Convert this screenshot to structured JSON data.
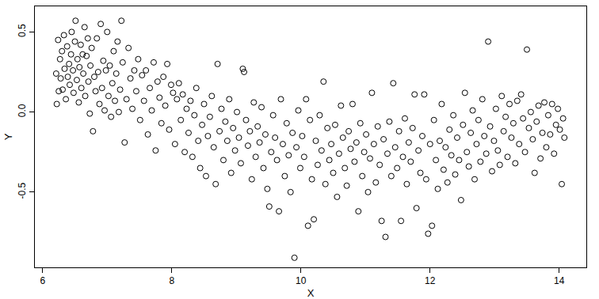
{
  "chart_data": {
    "type": "scatter",
    "x_label": "X",
    "y_label": "Y",
    "x": [
      6.21,
      6.22,
      6.24,
      6.25,
      6.27,
      6.28,
      6.3,
      6.31,
      6.33,
      6.34,
      6.36,
      6.38,
      6.39,
      6.41,
      6.42,
      6.44,
      6.45,
      6.47,
      6.48,
      6.5,
      6.51,
      6.53,
      6.54,
      6.56,
      6.57,
      6.59,
      6.6,
      6.62,
      6.63,
      6.65,
      6.66,
      6.68,
      6.7,
      6.71,
      6.73,
      6.74,
      6.76,
      6.78,
      6.8,
      6.82,
      6.84,
      6.86,
      6.88,
      6.9,
      6.92,
      6.94,
      6.96,
      6.98,
      7.0,
      7.02,
      7.04,
      7.06,
      7.08,
      7.1,
      7.12,
      7.14,
      7.16,
      7.18,
      7.2,
      7.22,
      7.24,
      7.27,
      7.3,
      7.33,
      7.36,
      7.39,
      7.42,
      7.45,
      7.48,
      7.51,
      7.54,
      7.57,
      7.6,
      7.63,
      7.66,
      7.69,
      7.72,
      7.75,
      7.78,
      7.81,
      7.84,
      7.87,
      7.9,
      7.93,
      7.96,
      7.99,
      8.02,
      8.05,
      8.08,
      8.11,
      8.14,
      8.17,
      8.2,
      8.23,
      8.26,
      8.29,
      8.32,
      8.35,
      8.38,
      8.41,
      8.44,
      8.47,
      8.5,
      8.53,
      8.56,
      8.59,
      8.62,
      8.65,
      8.68,
      8.71,
      8.74,
      8.77,
      8.8,
      8.83,
      8.86,
      8.89,
      8.92,
      8.95,
      8.98,
      9.01,
      9.04,
      9.07,
      9.1,
      9.12,
      9.15,
      9.18,
      9.21,
      9.24,
      9.27,
      9.3,
      9.33,
      9.36,
      9.39,
      9.42,
      9.45,
      9.48,
      9.51,
      9.54,
      9.57,
      9.6,
      9.63,
      9.66,
      9.69,
      9.72,
      9.75,
      9.78,
      9.81,
      9.84,
      9.87,
      9.9,
      9.93,
      9.96,
      9.99,
      10.02,
      10.05,
      10.08,
      10.11,
      10.14,
      10.17,
      10.2,
      10.23,
      10.26,
      10.29,
      10.32,
      10.35,
      10.38,
      10.41,
      10.44,
      10.47,
      10.5,
      10.53,
      10.56,
      10.59,
      10.62,
      10.65,
      10.68,
      10.71,
      10.74,
      10.77,
      10.8,
      10.83,
      10.86,
      10.89,
      10.92,
      10.95,
      10.98,
      11.01,
      11.04,
      11.07,
      11.1,
      11.13,
      11.16,
      11.19,
      11.22,
      11.25,
      11.28,
      11.31,
      11.34,
      11.37,
      11.4,
      11.43,
      11.46,
      11.49,
      11.52,
      11.55,
      11.58,
      11.61,
      11.64,
      11.67,
      11.7,
      11.73,
      11.76,
      11.79,
      11.82,
      11.85,
      11.88,
      11.91,
      11.94,
      11.97,
      12.0,
      12.03,
      12.06,
      12.09,
      12.12,
      12.15,
      12.18,
      12.21,
      12.24,
      12.27,
      12.3,
      12.33,
      12.36,
      12.39,
      12.42,
      12.45,
      12.48,
      12.51,
      12.54,
      12.57,
      12.6,
      12.63,
      12.66,
      12.69,
      12.72,
      12.75,
      12.78,
      12.81,
      12.84,
      12.87,
      12.9,
      12.93,
      12.96,
      12.99,
      13.02,
      13.05,
      13.08,
      13.11,
      13.14,
      13.17,
      13.2,
      13.23,
      13.26,
      13.29,
      13.32,
      13.35,
      13.38,
      13.41,
      13.44,
      13.47,
      13.5,
      13.53,
      13.56,
      13.59,
      13.62,
      13.65,
      13.68,
      13.71,
      13.74,
      13.77,
      13.8,
      13.83,
      13.86,
      13.89,
      13.92,
      13.95,
      13.98,
      14.01,
      14.04,
      14.06,
      14.08
    ],
    "values": [
      0.24,
      0.05,
      0.45,
      0.13,
      0.33,
      0.21,
      0.38,
      0.14,
      0.48,
      0.27,
      0.08,
      0.41,
      0.22,
      0.3,
      0.17,
      0.36,
      0.5,
      0.26,
      0.12,
      0.44,
      0.57,
      0.2,
      0.33,
      0.06,
      0.28,
      0.42,
      0.15,
      0.36,
      0.24,
      0.53,
      0.1,
      0.35,
      0.46,
      0.19,
      -0.01,
      0.29,
      0.4,
      -0.12,
      0.22,
      0.13,
      0.46,
      0.25,
      0.05,
      0.55,
      0.15,
      0.32,
      0.01,
      0.26,
      0.5,
      0.1,
      0.29,
      -0.03,
      0.18,
      0.38,
      0.07,
      0.24,
      0.44,
      0.0,
      0.14,
      0.57,
      0.31,
      -0.19,
      0.08,
      0.4,
      0.21,
      0.02,
      0.26,
      0.13,
      0.33,
      -0.05,
      0.23,
      0.07,
      0.26,
      -0.14,
      0.15,
      0.01,
      0.31,
      -0.24,
      0.19,
      0.09,
      -0.07,
      0.22,
      0.04,
      0.3,
      -0.11,
      0.17,
      0.12,
      -0.2,
      0.08,
      0.18,
      -0.05,
      0.11,
      -0.25,
      0.02,
      -0.13,
      0.07,
      -0.28,
      -0.02,
      0.15,
      -0.18,
      -0.35,
      -0.08,
      0.05,
      -0.4,
      -0.15,
      -0.03,
      0.1,
      -0.22,
      -0.45,
      0.3,
      -0.12,
      0.02,
      -0.3,
      -0.06,
      -0.18,
      0.08,
      -0.38,
      -0.1,
      -0.24,
      0.0,
      -0.16,
      -0.32,
      0.27,
      0.25,
      -0.05,
      -0.21,
      -0.12,
      -0.42,
      0.06,
      -0.28,
      -0.09,
      -0.19,
      0.03,
      -0.35,
      -0.14,
      -0.48,
      -0.59,
      -0.25,
      -0.02,
      -0.16,
      -0.3,
      -0.62,
      0.08,
      -0.2,
      -0.4,
      -0.07,
      -0.27,
      -0.5,
      -0.13,
      -0.91,
      -0.22,
      0.01,
      -0.35,
      -0.15,
      -0.28,
      0.08,
      -0.71,
      -0.05,
      -0.42,
      -0.67,
      -0.18,
      -0.33,
      -0.02,
      -0.24,
      0.19,
      -0.45,
      -0.1,
      -0.3,
      -0.2,
      -0.38,
      -0.08,
      -0.53,
      -0.26,
      0.04,
      -0.16,
      -0.35,
      -0.46,
      -0.12,
      -0.23,
      0.05,
      -0.31,
      -0.19,
      -0.62,
      -0.07,
      -0.4,
      -0.25,
      -0.14,
      -0.5,
      -0.29,
      0.12,
      -0.2,
      -0.44,
      -0.09,
      -0.33,
      -0.68,
      -0.17,
      -0.78,
      -0.26,
      -0.06,
      -0.4,
      0.18,
      -0.22,
      -0.35,
      -0.12,
      -0.68,
      -0.28,
      -0.04,
      -0.45,
      -0.19,
      -0.31,
      -0.1,
      0.11,
      -0.6,
      -0.24,
      -0.38,
      -0.15,
      0.11,
      -0.42,
      -0.76,
      -0.2,
      -0.71,
      -0.05,
      -0.3,
      -0.48,
      -0.18,
      0.05,
      -0.36,
      -0.22,
      -0.44,
      -0.11,
      -0.27,
      -0.02,
      -0.39,
      -0.16,
      -0.3,
      -0.55,
      -0.08,
      0.12,
      -0.25,
      -0.34,
      -0.13,
      0.01,
      -0.42,
      -0.2,
      -0.05,
      -0.31,
      0.08,
      -0.15,
      -0.26,
      0.44,
      -0.09,
      -0.37,
      -0.18,
      0.02,
      -0.24,
      -0.33,
      0.1,
      -0.12,
      -0.03,
      -0.28,
      0.05,
      -0.16,
      -0.07,
      -0.32,
      0.07,
      -0.2,
      0.11,
      -0.04,
      -0.25,
      0.39,
      -0.1,
      0.0,
      -0.17,
      -0.38,
      -0.06,
      0.04,
      -0.29,
      -0.13,
      0.06,
      -0.22,
      -0.02,
      -0.14,
      0.05,
      -0.26,
      -0.08,
      0.02,
      -0.11,
      -0.45,
      -0.04,
      -0.16
    ],
    "xlim": [
      5.88,
      14.42
    ],
    "ylim": [
      -0.97,
      0.66
    ],
    "xticks": [
      6,
      8,
      10,
      12,
      14
    ],
    "yticks": [
      -0.5,
      {
        "value": 0,
        "label": "0.0"
      },
      0.5
    ],
    "color": "#000000",
    "marker": "circle-open",
    "grid": false
  }
}
